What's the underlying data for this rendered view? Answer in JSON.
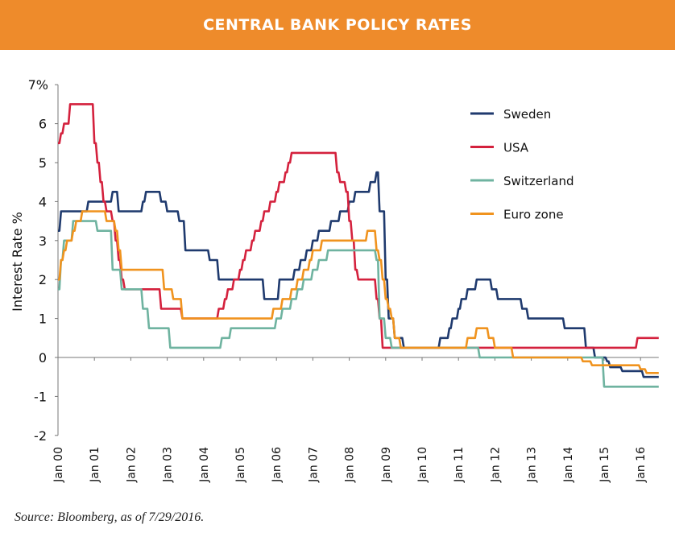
{
  "header": {
    "title": "CENTRAL BANK POLICY RATES"
  },
  "source": "Source: Bloomberg, as of 7/29/2016.",
  "chart_data": {
    "type": "line",
    "title": "CENTRAL BANK POLICY RATES",
    "xlabel": "",
    "ylabel": "Interest Rate %",
    "ylim": [
      -2,
      7
    ],
    "yticks": [
      -2,
      -1,
      0,
      1,
      2,
      3,
      4,
      5,
      6,
      7
    ],
    "ytick_labels": [
      "-2",
      "-1",
      "0",
      "1",
      "2",
      "3",
      "4",
      "5",
      "6",
      "7%"
    ],
    "xlim": [
      "2000-01",
      "2016-07"
    ],
    "xtick_labels": [
      "Jan 00",
      "Jan 01",
      "Jan 02",
      "Jan 03",
      "Jan 04",
      "Jan 05",
      "Jan 06",
      "Jan 07",
      "Jan 08",
      "Jan 09",
      "Jan 10",
      "Jan 11",
      "Jan 12",
      "Jan 13",
      "Jan 14",
      "Jan 15",
      "Jan 16"
    ],
    "grid": false,
    "legend_placement": "top-right",
    "step": true,
    "series": [
      {
        "name": "Sweden",
        "color": "#1f3a6e",
        "points": [
          [
            "2000-01",
            3.25
          ],
          [
            "2000-02",
            3.75
          ],
          [
            "2000-11",
            4.0
          ],
          [
            "2001-07",
            4.25
          ],
          [
            "2001-09",
            3.75
          ],
          [
            "2002-05",
            4.0
          ],
          [
            "2002-06",
            4.25
          ],
          [
            "2002-11",
            4.0
          ],
          [
            "2003-01",
            3.75
          ],
          [
            "2003-05",
            3.5
          ],
          [
            "2003-07",
            2.75
          ],
          [
            "2004-03",
            2.5
          ],
          [
            "2004-06",
            2.0
          ],
          [
            "2005-09",
            1.5
          ],
          [
            "2006-02",
            2.0
          ],
          [
            "2006-07",
            2.25
          ],
          [
            "2006-09",
            2.5
          ],
          [
            "2006-11",
            2.75
          ],
          [
            "2007-01",
            3.0
          ],
          [
            "2007-03",
            3.25
          ],
          [
            "2007-07",
            3.5
          ],
          [
            "2007-10",
            3.75
          ],
          [
            "2008-01",
            4.0
          ],
          [
            "2008-03",
            4.25
          ],
          [
            "2008-08",
            4.5
          ],
          [
            "2008-10",
            4.75
          ],
          [
            "2008-11",
            3.75
          ],
          [
            "2009-01",
            2.0
          ],
          [
            "2009-02",
            1.0
          ],
          [
            "2009-04",
            0.5
          ],
          [
            "2009-07",
            0.25
          ],
          [
            "2010-07",
            0.5
          ],
          [
            "2010-10",
            0.75
          ],
          [
            "2010-11",
            1.0
          ],
          [
            "2011-01",
            1.25
          ],
          [
            "2011-02",
            1.5
          ],
          [
            "2011-04",
            1.75
          ],
          [
            "2011-07",
            2.0
          ],
          [
            "2011-12",
            1.75
          ],
          [
            "2012-02",
            1.5
          ],
          [
            "2012-10",
            1.25
          ],
          [
            "2012-12",
            1.0
          ],
          [
            "2013-12",
            0.75
          ],
          [
            "2014-07",
            0.25
          ],
          [
            "2014-10",
            0.0
          ],
          [
            "2015-02",
            -0.1
          ],
          [
            "2015-03",
            -0.25
          ],
          [
            "2015-07",
            -0.35
          ],
          [
            "2016-02",
            -0.5
          ],
          [
            "2016-07",
            -0.5
          ]
        ]
      },
      {
        "name": "USA",
        "color": "#d4213d",
        "points": [
          [
            "2000-01",
            5.5
          ],
          [
            "2000-02",
            5.75
          ],
          [
            "2000-03",
            6.0
          ],
          [
            "2000-05",
            6.5
          ],
          [
            "2001-01",
            5.5
          ],
          [
            "2001-02",
            5.0
          ],
          [
            "2001-03",
            4.5
          ],
          [
            "2001-04",
            4.0
          ],
          [
            "2001-05",
            3.75
          ],
          [
            "2001-07",
            3.5
          ],
          [
            "2001-08",
            3.0
          ],
          [
            "2001-09",
            2.5
          ],
          [
            "2001-10",
            2.0
          ],
          [
            "2001-11",
            1.75
          ],
          [
            "2002-11",
            1.25
          ],
          [
            "2003-06",
            1.0
          ],
          [
            "2004-06",
            1.25
          ],
          [
            "2004-08",
            1.5
          ],
          [
            "2004-09",
            1.75
          ],
          [
            "2004-11",
            2.0
          ],
          [
            "2005-01",
            2.25
          ],
          [
            "2005-02",
            2.5
          ],
          [
            "2005-03",
            2.75
          ],
          [
            "2005-05",
            3.0
          ],
          [
            "2005-06",
            3.25
          ],
          [
            "2005-08",
            3.5
          ],
          [
            "2005-09",
            3.75
          ],
          [
            "2005-11",
            4.0
          ],
          [
            "2006-01",
            4.25
          ],
          [
            "2006-02",
            4.5
          ],
          [
            "2006-04",
            4.75
          ],
          [
            "2006-05",
            5.0
          ],
          [
            "2006-06",
            5.25
          ],
          [
            "2007-09",
            4.75
          ],
          [
            "2007-10",
            4.5
          ],
          [
            "2007-12",
            4.25
          ],
          [
            "2008-01",
            3.5
          ],
          [
            "2008-02",
            3.0
          ],
          [
            "2008-03",
            2.25
          ],
          [
            "2008-04",
            2.0
          ],
          [
            "2008-10",
            1.5
          ],
          [
            "2008-11",
            1.0
          ],
          [
            "2008-12",
            0.25
          ],
          [
            "2015-12",
            0.5
          ],
          [
            "2016-07",
            0.5
          ]
        ]
      },
      {
        "name": "Switzerland",
        "color": "#6fb3a0",
        "points": [
          [
            "2000-01",
            1.75
          ],
          [
            "2000-02",
            2.5
          ],
          [
            "2000-03",
            3.0
          ],
          [
            "2000-06",
            3.5
          ],
          [
            "2001-02",
            3.25
          ],
          [
            "2001-07",
            2.25
          ],
          [
            "2001-10",
            1.75
          ],
          [
            "2002-05",
            1.25
          ],
          [
            "2002-07",
            0.75
          ],
          [
            "2003-02",
            0.25
          ],
          [
            "2004-07",
            0.5
          ],
          [
            "2004-10",
            0.75
          ],
          [
            "2006-01",
            1.0
          ],
          [
            "2006-03",
            1.25
          ],
          [
            "2006-06",
            1.5
          ],
          [
            "2006-08",
            1.75
          ],
          [
            "2006-10",
            2.0
          ],
          [
            "2007-01",
            2.25
          ],
          [
            "2007-03",
            2.5
          ],
          [
            "2007-06",
            2.75
          ],
          [
            "2008-10",
            2.5
          ],
          [
            "2008-11",
            1.0
          ],
          [
            "2009-01",
            0.5
          ],
          [
            "2009-03",
            0.25
          ],
          [
            "2011-08",
            0.0
          ],
          [
            "2015-01",
            -0.75
          ],
          [
            "2016-07",
            -0.75
          ]
        ]
      },
      {
        "name": "Euro zone",
        "color": "#f0931e",
        "points": [
          [
            "2000-01",
            2.0
          ],
          [
            "2000-02",
            2.5
          ],
          [
            "2000-03",
            2.75
          ],
          [
            "2000-04",
            3.0
          ],
          [
            "2000-06",
            3.25
          ],
          [
            "2000-07",
            3.5
          ],
          [
            "2000-09",
            3.75
          ],
          [
            "2001-05",
            3.5
          ],
          [
            "2001-08",
            3.25
          ],
          [
            "2001-09",
            2.75
          ],
          [
            "2001-10",
            2.25
          ],
          [
            "2002-12",
            1.75
          ],
          [
            "2003-03",
            1.5
          ],
          [
            "2003-06",
            1.0
          ],
          [
            "2005-12",
            1.25
          ],
          [
            "2006-03",
            1.5
          ],
          [
            "2006-06",
            1.75
          ],
          [
            "2006-08",
            2.0
          ],
          [
            "2006-10",
            2.25
          ],
          [
            "2006-12",
            2.5
          ],
          [
            "2007-01",
            2.75
          ],
          [
            "2007-04",
            3.0
          ],
          [
            "2008-07",
            3.25
          ],
          [
            "2008-10",
            2.75
          ],
          [
            "2008-11",
            2.5
          ],
          [
            "2008-12",
            2.0
          ],
          [
            "2009-01",
            1.5
          ],
          [
            "2009-02",
            1.25
          ],
          [
            "2009-03",
            1.0
          ],
          [
            "2009-04",
            0.5
          ],
          [
            "2009-06",
            0.25
          ],
          [
            "2011-04",
            0.5
          ],
          [
            "2011-07",
            0.75
          ],
          [
            "2011-11",
            0.5
          ],
          [
            "2012-01",
            0.25
          ],
          [
            "2012-07",
            0.0
          ],
          [
            "2014-06",
            -0.1
          ],
          [
            "2014-09",
            -0.2
          ],
          [
            "2016-01",
            -0.3
          ],
          [
            "2016-03",
            -0.4
          ],
          [
            "2016-07",
            -0.4
          ]
        ]
      }
    ]
  }
}
